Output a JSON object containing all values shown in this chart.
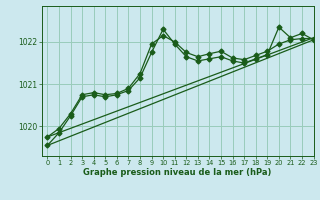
{
  "title": "Graphe pression niveau de la mer (hPa)",
  "bg_color": "#cce8ee",
  "grid_color": "#99ccbb",
  "line_color": "#1a5c1a",
  "xlim": [
    -0.5,
    23
  ],
  "ylim": [
    1019.3,
    1022.85
  ],
  "yticks": [
    1020,
    1021,
    1022
  ],
  "xticks": [
    0,
    1,
    2,
    3,
    4,
    5,
    6,
    7,
    8,
    9,
    10,
    11,
    12,
    13,
    14,
    15,
    16,
    17,
    18,
    19,
    20,
    21,
    22,
    23
  ],
  "series_smooth": [
    [
      0,
      1019.55
    ],
    [
      23,
      1022.05
    ]
  ],
  "series_smooth2": [
    [
      0,
      1019.75
    ],
    [
      23,
      1022.1
    ]
  ],
  "series_marker1_x": [
    0,
    1,
    2,
    3,
    4,
    5,
    6,
    7,
    8,
    9,
    10,
    11,
    12,
    13,
    14,
    15,
    16,
    17,
    18,
    19,
    20,
    21,
    22,
    23
  ],
  "series_marker1_y": [
    1019.55,
    1019.85,
    1020.25,
    1020.7,
    1020.75,
    1020.7,
    1020.75,
    1020.85,
    1021.15,
    1021.75,
    1022.3,
    1021.95,
    1021.65,
    1021.55,
    1021.6,
    1021.65,
    1021.55,
    1021.5,
    1021.6,
    1021.7,
    1022.35,
    1022.1,
    1022.2,
    1022.05
  ],
  "series_marker2_x": [
    0,
    1,
    2,
    3,
    4,
    5,
    6,
    7,
    8,
    9,
    10,
    11,
    12,
    13,
    14,
    15,
    16,
    17,
    18,
    19,
    20,
    21,
    22,
    23
  ],
  "series_marker2_y": [
    1019.75,
    1019.95,
    1020.3,
    1020.75,
    1020.8,
    1020.75,
    1020.78,
    1020.9,
    1021.25,
    1021.95,
    1022.15,
    1022.0,
    1021.75,
    1021.65,
    1021.72,
    1021.78,
    1021.62,
    1021.58,
    1021.68,
    1021.78,
    1021.95,
    1022.05,
    1022.08,
    1022.08
  ],
  "marker": "D",
  "marker_size": 2.5,
  "ytick_fontsize": 5.5,
  "xtick_fontsize": 4.8,
  "label_fontsize": 6.0
}
